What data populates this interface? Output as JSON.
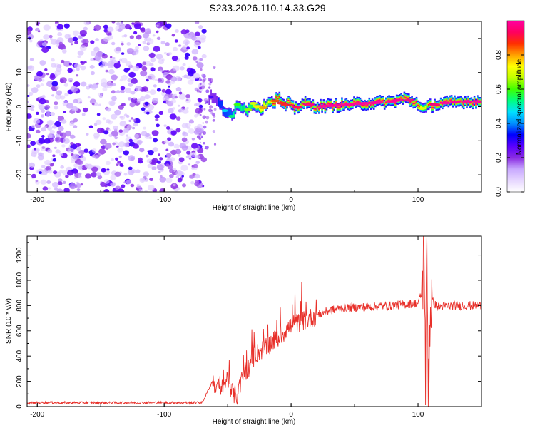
{
  "title": "S233.2026.110.14.33.G29",
  "chart_data": [
    {
      "type": "heatmap",
      "name": "spectrogram",
      "xlabel": "Height of straight line (km)",
      "ylabel": "Frequency (Hz)",
      "xlim": [
        -208,
        150
      ],
      "ylim": [
        -25,
        25
      ],
      "xticks": [
        -200,
        -100,
        0,
        100
      ],
      "xtick_labels": [
        "-200",
        "-100",
        "0",
        "100"
      ],
      "yticks": [
        -20,
        -10,
        0,
        10,
        20
      ],
      "ytick_labels": [
        "-20",
        "-10",
        "0",
        "10",
        "20"
      ],
      "noise_region_x": [
        -208,
        -68
      ],
      "tone_track": {
        "x": [
          -68,
          -62,
          -58,
          -54,
          -50,
          -46,
          -42,
          -38,
          -34,
          -30,
          -26,
          -22,
          -18,
          -14,
          -10,
          -6,
          -2,
          2,
          6,
          10,
          20,
          40,
          60,
          80,
          90,
          95,
          100,
          104,
          108,
          112,
          120,
          135,
          150
        ],
        "freq": [
          2,
          3,
          1.5,
          -0.5,
          -2,
          -3,
          1,
          0,
          -1,
          1,
          0,
          -0.5,
          2,
          1,
          3,
          0,
          1,
          -0.5,
          0,
          1,
          0,
          0.5,
          1,
          1.5,
          2.5,
          1.5,
          1,
          -1,
          0,
          0.5,
          1,
          1.5,
          1.5
        ],
        "amplitude": [
          0.15,
          0.25,
          0.35,
          0.4,
          0.45,
          0.5,
          0.55,
          0.6,
          0.6,
          0.65,
          0.7,
          0.75,
          0.75,
          0.8,
          0.8,
          0.85,
          0.85,
          0.9,
          0.9,
          0.9,
          0.95,
          0.95,
          0.95,
          0.95,
          0.95,
          0.9,
          0.9,
          0.6,
          0.8,
          0.9,
          0.95,
          0.95,
          0.95
        ]
      }
    },
    {
      "type": "line",
      "name": "snr",
      "xlabel": "Height of straight line (km)",
      "ylabel": "SNR (10 * v/v)",
      "xlim": [
        -208,
        150
      ],
      "ylim": [
        0,
        1350
      ],
      "xticks": [
        -200,
        -100,
        0,
        100
      ],
      "xtick_labels": [
        "-200",
        "-100",
        "0",
        "100"
      ],
      "yticks": [
        0,
        200,
        400,
        600,
        800,
        1000,
        1200
      ],
      "ytick_labels": [
        "0",
        "200",
        "400",
        "600",
        "800",
        "1000",
        "1200"
      ],
      "line_color": "#e8302a",
      "series": [
        {
          "name": "SNR",
          "x": [
            -208,
            -190,
            -170,
            -150,
            -130,
            -110,
            -90,
            -70,
            -62,
            -58,
            -55,
            -50,
            -46,
            -42,
            -38,
            -34,
            -30,
            -26,
            -20,
            -14,
            -8,
            -4,
            0,
            5,
            10,
            15,
            20,
            25,
            30,
            40,
            50,
            60,
            70,
            80,
            90,
            100,
            103,
            105,
            106,
            107,
            108,
            110,
            115,
            130,
            150
          ],
          "y": [
            30,
            32,
            30,
            31,
            30,
            32,
            30,
            32,
            200,
            160,
            120,
            230,
            100,
            90,
            250,
            300,
            380,
            430,
            470,
            520,
            560,
            610,
            640,
            660,
            680,
            700,
            720,
            740,
            760,
            780,
            785,
            790,
            795,
            800,
            810,
            820,
            900,
            1300,
            150,
            1300,
            200,
            850,
            790,
            800,
            800
          ]
        }
      ]
    }
  ],
  "colorbar": {
    "label": "Normalized spectral amplitude",
    "ticks": [
      0.0,
      0.2,
      0.4,
      0.6,
      0.8
    ],
    "tick_labels": [
      "0.0",
      "0.2",
      "0.4",
      "0.6",
      "0.8"
    ],
    "range": [
      0,
      1
    ],
    "colors": [
      "#ffffff",
      "#e6d6ff",
      "#c8a8ff",
      "#8a2be2",
      "#5a00ff",
      "#0000ff",
      "#0090ff",
      "#00e0ff",
      "#00ff80",
      "#40ff00",
      "#c0ff00",
      "#ffff00",
      "#ffa000",
      "#ff3000",
      "#ff0060",
      "#ff00a0"
    ]
  },
  "colors": {
    "noise": "#8a2be2",
    "snr_line": "#e8302a"
  }
}
